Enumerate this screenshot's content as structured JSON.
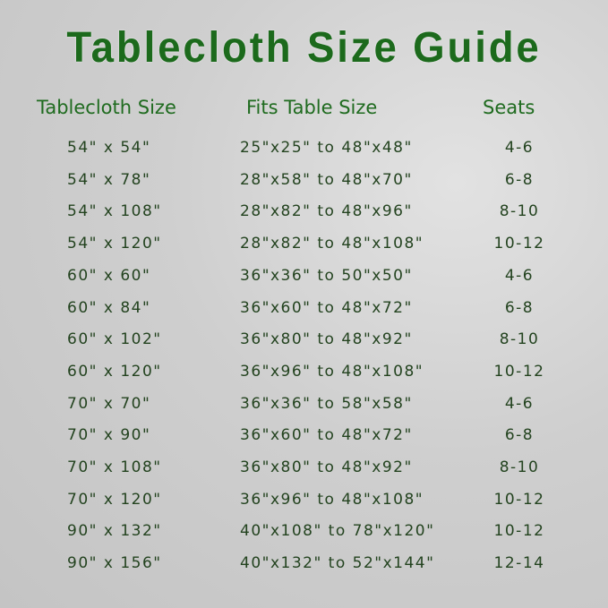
{
  "title": "Tablecloth Size Guide",
  "headers": [
    "Tablecloth Size",
    "Fits Table Size",
    "Seats"
  ],
  "rows": [
    [
      "54\" x 54\"",
      "25\"x25\" to 48\"x48\"",
      "4-6"
    ],
    [
      "54\" x 78\"",
      "28\"x58\" to 48\"x70\"",
      "6-8"
    ],
    [
      "54\" x 108\"",
      "28\"x82\" to 48\"x96\"",
      "8-10"
    ],
    [
      "54\" x 120\"",
      "28\"x82\" to 48\"x108\"",
      "10-12"
    ],
    [
      "60\" x 60\"",
      "36\"x36\" to 50\"x50\"",
      "4-6"
    ],
    [
      "60\" x 84\"",
      "36\"x60\" to 48\"x72\"",
      "6-8"
    ],
    [
      "60\" x 102\"",
      "36\"x80\" to 48\"x92\"",
      "8-10"
    ],
    [
      "60\" x 120\"",
      "36\"x96\" to 48\"x108\"",
      "10-12"
    ],
    [
      "70\" x 70\"",
      "36\"x36\" to 58\"x58\"",
      "4-6"
    ],
    [
      "70\" x 90\"",
      "36\"x60\" to 48\"x72\"",
      "6-8"
    ],
    [
      "70\" x 108\"",
      "36\"x80\" to 48\"x92\"",
      "8-10"
    ],
    [
      "70\" x 120\"",
      "36\"x96\" to 48\"x108\"",
      "10-12"
    ],
    [
      "90\" x 132\"",
      "40\"x108\" to 78\"x120\"",
      "10-12"
    ],
    [
      "90\" x 156\"",
      "40\"x132\" to 52\"x144\"",
      "12-14"
    ]
  ],
  "colors": {
    "title": "#1c6a1c",
    "header": "#1f6b1f",
    "body_text": "#23431f",
    "background": "#cfcfcf"
  }
}
